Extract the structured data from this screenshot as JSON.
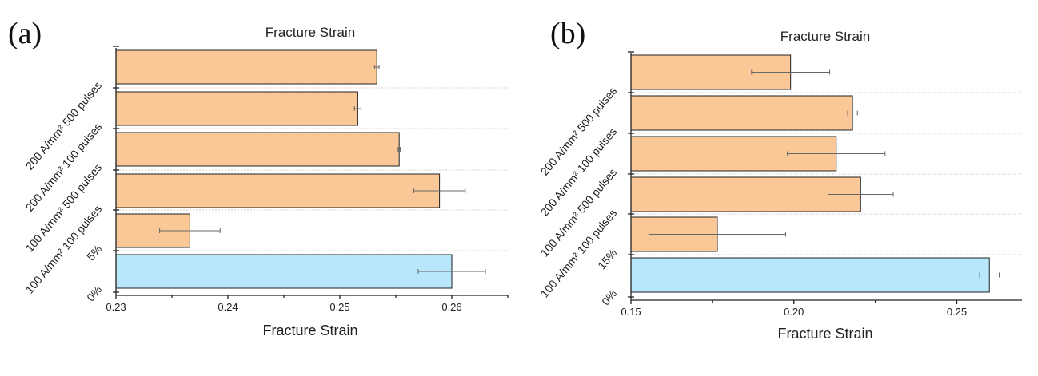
{
  "panels": [
    {
      "label": "(a)"
    },
    {
      "label": "(b)"
    }
  ],
  "colors": {
    "treated": "#FAC896",
    "control": "#B8E6FA"
  },
  "chart_data": [
    {
      "type": "bar",
      "orientation": "horizontal",
      "title": "Fracture Strain",
      "xlabel": "Fracture Strain",
      "ylabel": "",
      "categories": [
        "200 A/mm² 500 pulses",
        "200 A/mm² 100 pulses",
        "100 A/mm² 500 pulses",
        "100 A/mm² 100 pulses",
        "5%",
        "0%"
      ],
      "values": [
        0.2533,
        0.2516,
        0.2553,
        0.2589,
        0.2366,
        0.26
      ],
      "errors": [
        0.0002,
        0.0003,
        0.0001,
        0.0023,
        0.0027,
        0.003
      ],
      "bar_colors": [
        "treated",
        "treated",
        "treated",
        "treated",
        "treated",
        "control"
      ],
      "xlim": [
        0.23,
        0.265
      ],
      "xticks": [
        0.23,
        0.24,
        0.25,
        0.26
      ],
      "xtick_labels": [
        "0.23",
        "0.24",
        "0.25",
        "0.26"
      ],
      "grid": "horizontal dashed",
      "legend": "none"
    },
    {
      "type": "bar",
      "orientation": "horizontal",
      "title": "Fracture Strain",
      "xlabel": "Fracture Strain",
      "ylabel": "",
      "categories": [
        "200 A/mm² 500 pulses",
        "200 A/mm² 100 pulses",
        "100 A/mm² 500 pulses",
        "100 A/mm² 100 pulses",
        "15%",
        "0%"
      ],
      "values": [
        0.199,
        0.218,
        0.213,
        0.2205,
        0.1765,
        0.26
      ],
      "errors": [
        0.012,
        0.0015,
        0.015,
        0.01,
        0.021,
        0.003
      ],
      "bar_colors": [
        "treated",
        "treated",
        "treated",
        "treated",
        "treated",
        "control"
      ],
      "xlim": [
        0.15,
        0.27
      ],
      "xticks": [
        0.15,
        0.2,
        0.25
      ],
      "xtick_labels": [
        "0.15",
        "0.20",
        "0.25"
      ],
      "grid": "horizontal dashed",
      "legend": "none"
    }
  ]
}
